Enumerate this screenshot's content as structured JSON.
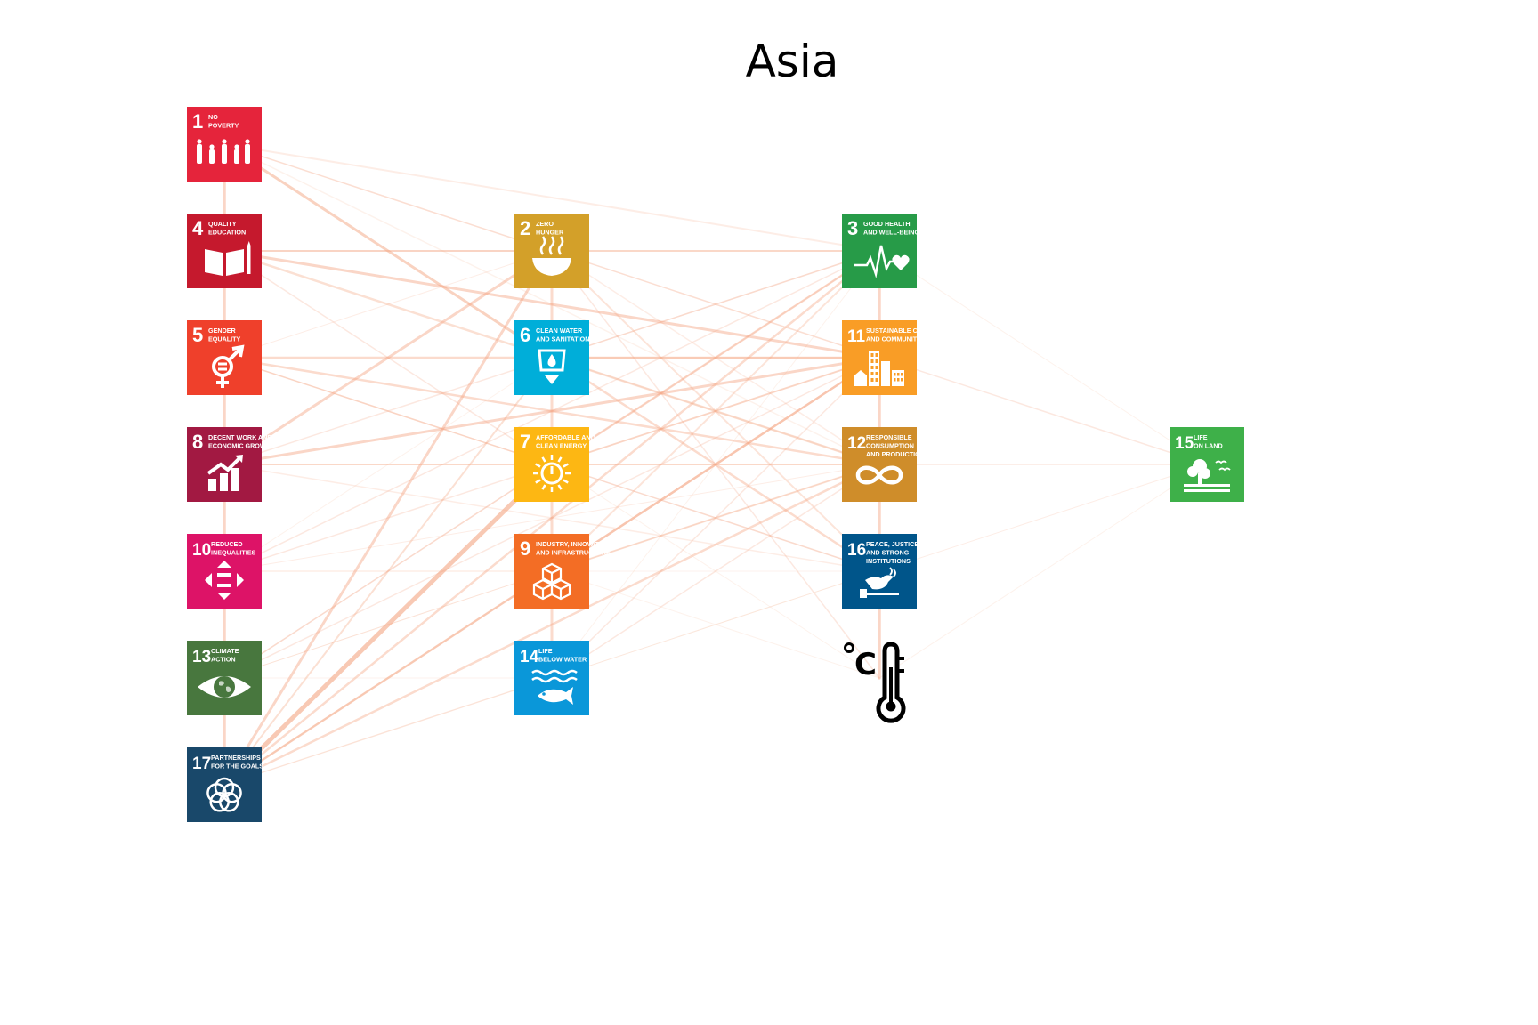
{
  "title": "Asia",
  "nodes": [
    {
      "id": "1",
      "col": 0,
      "row": 0,
      "number": "1",
      "label": [
        "NO",
        "POVERTY"
      ],
      "color": "#e5243b",
      "icon": "family-icon"
    },
    {
      "id": "4",
      "col": 0,
      "row": 1,
      "number": "4",
      "label": [
        "QUALITY",
        "EDUCATION"
      ],
      "color": "#c5192d",
      "icon": "book-pencil-icon"
    },
    {
      "id": "5",
      "col": 0,
      "row": 2,
      "number": "5",
      "label": [
        "GENDER",
        "EQUALITY"
      ],
      "color": "#ef402b",
      "icon": "gender-symbol-icon"
    },
    {
      "id": "8",
      "col": 0,
      "row": 3,
      "number": "8",
      "label": [
        "DECENT WORK AND",
        "ECONOMIC GROWTH"
      ],
      "color": "#a21942",
      "icon": "growth-chart-icon"
    },
    {
      "id": "10",
      "col": 0,
      "row": 4,
      "number": "10",
      "label": [
        "REDUCED",
        "INEQUALITIES"
      ],
      "color": "#dd1367",
      "icon": "equality-arrows-icon"
    },
    {
      "id": "13",
      "col": 0,
      "row": 5,
      "number": "13",
      "label": [
        "CLIMATE",
        "ACTION"
      ],
      "color": "#48773e",
      "icon": "earth-eye-icon"
    },
    {
      "id": "17",
      "col": 0,
      "row": 6,
      "number": "17",
      "label": [
        "PARTNERSHIPS",
        "FOR THE GOALS"
      ],
      "color": "#19486a",
      "icon": "rings-icon"
    },
    {
      "id": "2",
      "col": 1,
      "row": 1,
      "number": "2",
      "label": [
        "ZERO",
        "HUNGER"
      ],
      "color": "#d3a029",
      "icon": "bowl-icon"
    },
    {
      "id": "6",
      "col": 1,
      "row": 2,
      "number": "6",
      "label": [
        "CLEAN WATER",
        "AND SANITATION"
      ],
      "color": "#00aed9",
      "icon": "water-drop-icon"
    },
    {
      "id": "7",
      "col": 1,
      "row": 3,
      "number": "7",
      "label": [
        "AFFORDABLE AND",
        "CLEAN ENERGY"
      ],
      "color": "#fdb713",
      "icon": "sun-power-icon"
    },
    {
      "id": "9",
      "col": 1,
      "row": 4,
      "number": "9",
      "label": [
        "INDUSTRY, INNOVATION",
        "AND INFRASTRUCTURE"
      ],
      "color": "#f36d25",
      "icon": "cubes-icon"
    },
    {
      "id": "14",
      "col": 1,
      "row": 5,
      "number": "14",
      "label": [
        "LIFE",
        "BELOW WATER"
      ],
      "color": "#0a97d9",
      "icon": "fish-icon"
    },
    {
      "id": "3",
      "col": 2,
      "row": 1,
      "number": "3",
      "label": [
        "GOOD HEALTH",
        "AND WELL-BEING"
      ],
      "color": "#279b48",
      "icon": "heartbeat-icon"
    },
    {
      "id": "11",
      "col": 2,
      "row": 2,
      "number": "11",
      "label": [
        "SUSTAINABLE CITIES",
        "AND COMMUNITIES"
      ],
      "color": "#f99d26",
      "icon": "city-buildings-icon"
    },
    {
      "id": "12",
      "col": 2,
      "row": 3,
      "number": "12",
      "label": [
        "RESPONSIBLE",
        "CONSUMPTION",
        "AND PRODUCTION"
      ],
      "color": "#cf8d2a",
      "icon": "infinity-icon"
    },
    {
      "id": "16",
      "col": 2,
      "row": 4,
      "number": "16",
      "label": [
        "PEACE, JUSTICE",
        "AND STRONG",
        "INSTITUTIONS"
      ],
      "color": "#00558a",
      "icon": "dove-gavel-icon"
    },
    {
      "id": "T",
      "col": 2,
      "row": 5,
      "number": "",
      "label": [],
      "color": "#000000",
      "icon": "thermometer-celsius-icon"
    },
    {
      "id": "15",
      "col": 3,
      "row": 3,
      "number": "15",
      "label": [
        "LIFE",
        "ON LAND"
      ],
      "color": "#3eb049",
      "icon": "tree-icon"
    }
  ],
  "edges": [
    [
      "1",
      "4",
      3.5,
      0.45
    ],
    [
      "4",
      "5",
      3.5,
      0.45
    ],
    [
      "5",
      "8",
      3.5,
      0.45
    ],
    [
      "8",
      "10",
      3.5,
      0.45
    ],
    [
      "10",
      "13",
      3.5,
      0.45
    ],
    [
      "13",
      "17",
      3.5,
      0.45
    ],
    [
      "2",
      "6",
      3,
      0.4
    ],
    [
      "6",
      "7",
      3,
      0.4
    ],
    [
      "7",
      "9",
      3,
      0.4
    ],
    [
      "9",
      "14",
      3,
      0.4
    ],
    [
      "3",
      "11",
      3.5,
      0.45
    ],
    [
      "11",
      "12",
      3.5,
      0.45
    ],
    [
      "12",
      "16",
      3.5,
      0.45
    ],
    [
      "16",
      "T",
      3.5,
      0.45
    ],
    [
      "1",
      "6",
      3,
      0.5
    ],
    [
      "1",
      "3",
      2,
      0.2
    ],
    [
      "1",
      "11",
      1.5,
      0.2
    ],
    [
      "1",
      "12",
      1.5,
      0.15
    ],
    [
      "1",
      "2",
      1.5,
      0.2
    ],
    [
      "4",
      "2",
      2,
      0.35
    ],
    [
      "4",
      "3",
      1.5,
      0.25
    ],
    [
      "4",
      "11",
      3,
      0.45
    ],
    [
      "4",
      "12",
      2.5,
      0.35
    ],
    [
      "4",
      "7",
      1.5,
      0.25
    ],
    [
      "5",
      "11",
      2.5,
      0.4
    ],
    [
      "5",
      "12",
      2.5,
      0.4
    ],
    [
      "5",
      "7",
      1.5,
      0.3
    ],
    [
      "5",
      "16",
      1.5,
      0.25
    ],
    [
      "5",
      "2",
      1,
      0.2
    ],
    [
      "8",
      "2",
      3,
      0.45
    ],
    [
      "8",
      "11",
      3,
      0.45
    ],
    [
      "8",
      "12",
      2,
      0.3
    ],
    [
      "8",
      "3",
      1.5,
      0.25
    ],
    [
      "8",
      "7",
      1.5,
      0.25
    ],
    [
      "8",
      "16",
      1.5,
      0.2
    ],
    [
      "10",
      "11",
      1.5,
      0.25
    ],
    [
      "10",
      "3",
      1.5,
      0.25
    ],
    [
      "10",
      "9",
      1.5,
      0.2
    ],
    [
      "10",
      "12",
      1,
      0.2
    ],
    [
      "10",
      "6",
      1,
      0.15
    ],
    [
      "13",
      "3",
      1.5,
      0.25
    ],
    [
      "13",
      "11",
      1.5,
      0.25
    ],
    [
      "13",
      "7",
      1.5,
      0.2
    ],
    [
      "13",
      "12",
      1,
      0.2
    ],
    [
      "13",
      "9",
      1,
      0.15
    ],
    [
      "13",
      "14",
      1,
      0.15
    ],
    [
      "17",
      "2",
      3,
      0.45
    ],
    [
      "17",
      "7",
      5,
      0.6
    ],
    [
      "17",
      "3",
      2.5,
      0.4
    ],
    [
      "17",
      "11",
      2.5,
      0.4
    ],
    [
      "17",
      "12",
      2.5,
      0.4
    ],
    [
      "17",
      "6",
      2,
      0.35
    ],
    [
      "17",
      "9",
      2,
      0.35
    ],
    [
      "17",
      "14",
      1.5,
      0.2
    ],
    [
      "17",
      "16",
      1,
      0.15
    ],
    [
      "2",
      "3",
      2,
      0.3
    ],
    [
      "2",
      "11",
      1.5,
      0.2
    ],
    [
      "2",
      "12",
      1.5,
      0.2
    ],
    [
      "2",
      "16",
      2,
      0.3
    ],
    [
      "2",
      "T",
      1.5,
      0.25
    ],
    [
      "6",
      "11",
      2,
      0.3
    ],
    [
      "6",
      "12",
      1.5,
      0.2
    ],
    [
      "6",
      "16",
      2.5,
      0.4
    ],
    [
      "6",
      "3",
      1.5,
      0.2
    ],
    [
      "7",
      "3",
      2.5,
      0.4
    ],
    [
      "7",
      "11",
      2,
      0.3
    ],
    [
      "7",
      "12",
      1.5,
      0.25
    ],
    [
      "7",
      "16",
      1.5,
      0.2
    ],
    [
      "7",
      "T",
      1,
      0.15
    ],
    [
      "9",
      "11",
      2.5,
      0.4
    ],
    [
      "9",
      "12",
      2,
      0.35
    ],
    [
      "9",
      "3",
      2,
      0.3
    ],
    [
      "9",
      "16",
      1,
      0.15
    ],
    [
      "9",
      "T",
      1,
      0.15
    ],
    [
      "14",
      "12",
      1.5,
      0.25
    ],
    [
      "14",
      "11",
      1.5,
      0.25
    ],
    [
      "14",
      "3",
      1,
      0.15
    ],
    [
      "14",
      "16",
      1,
      0.15
    ],
    [
      "11",
      "15",
      1.5,
      0.25
    ],
    [
      "12",
      "15",
      1.5,
      0.25
    ],
    [
      "16",
      "15",
      1,
      0.2
    ],
    [
      "T",
      "15",
      1,
      0.15
    ],
    [
      "3",
      "15",
      1,
      0.15
    ]
  ],
  "edge_color": "#f4a582"
}
